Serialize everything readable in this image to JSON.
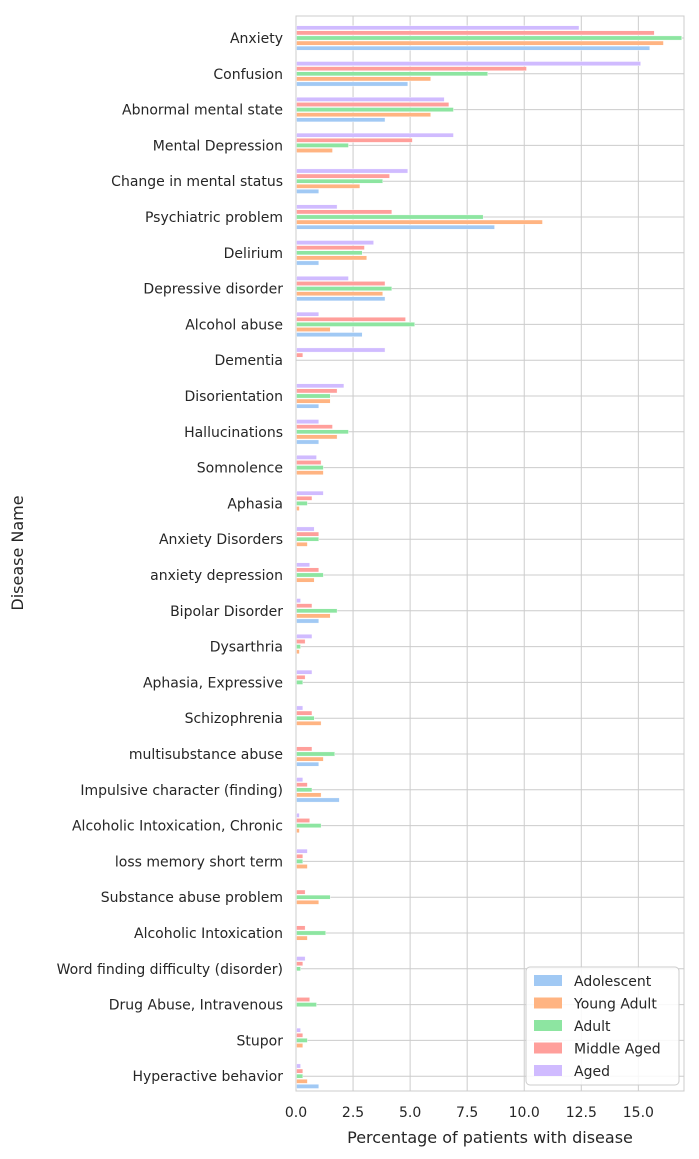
{
  "chart_data": {
    "type": "bar",
    "orientation": "horizontal",
    "title": "",
    "xlabel": "Percentage of patients with disease",
    "ylabel": "Disease Name",
    "xlim": [
      0,
      17
    ],
    "xticks": [
      "0.0",
      "2.5",
      "5.0",
      "7.5",
      "10.0",
      "12.5",
      "15.0"
    ],
    "xtick_values": [
      0,
      2.5,
      5,
      7.5,
      10,
      12.5,
      15
    ],
    "grid": true,
    "legend_position": "bottom-right",
    "categories": [
      "Anxiety",
      "Confusion",
      "Abnormal mental state",
      "Mental Depression",
      "Change in mental status",
      "Psychiatric problem",
      "Delirium",
      "Depressive disorder",
      "Alcohol abuse",
      "Dementia",
      "Disorientation",
      "Hallucinations",
      "Somnolence",
      "Aphasia",
      "Anxiety Disorders",
      "anxiety depression",
      "Bipolar Disorder",
      "Dysarthria",
      "Aphasia, Expressive",
      "Schizophrenia",
      "multisubstance abuse",
      "Impulsive character (finding)",
      "Alcoholic Intoxication, Chronic",
      "loss memory short term",
      "Substance abuse problem",
      "Alcoholic Intoxication",
      "Word finding difficulty (disorder)",
      "Drug Abuse, Intravenous",
      "Stupor",
      "Hyperactive behavior"
    ],
    "series": [
      {
        "name": "Adolescent",
        "color": "#a1c9f4",
        "values": [
          15.5,
          4.9,
          3.9,
          0,
          1.0,
          8.7,
          1.0,
          3.9,
          2.9,
          0,
          1.0,
          1.0,
          0,
          0,
          0,
          0,
          1.0,
          0,
          0,
          0,
          1.0,
          1.9,
          0,
          0,
          0,
          0,
          0,
          0,
          0,
          1.0
        ]
      },
      {
        "name": "Young Adult",
        "color": "#ffb482",
        "values": [
          16.1,
          5.9,
          5.9,
          1.6,
          2.8,
          10.8,
          3.1,
          3.8,
          1.5,
          0,
          1.5,
          1.8,
          1.2,
          0.15,
          0.5,
          0.8,
          1.5,
          0.15,
          0,
          1.1,
          1.2,
          1.1,
          0.15,
          0.5,
          1.0,
          0.5,
          0,
          0,
          0.3,
          0.5
        ]
      },
      {
        "name": "Adult",
        "color": "#8de5a1",
        "values": [
          16.9,
          8.4,
          6.9,
          2.3,
          3.8,
          8.2,
          2.9,
          4.2,
          5.2,
          0,
          1.5,
          2.3,
          1.2,
          0.5,
          1.0,
          1.2,
          1.8,
          0.2,
          0.3,
          0.8,
          1.7,
          0.7,
          1.1,
          0.3,
          1.5,
          1.3,
          0.2,
          0.9,
          0.5,
          0.3
        ]
      },
      {
        "name": "Middle Aged",
        "color": "#ff9f9b",
        "values": [
          15.7,
          10.1,
          6.7,
          5.1,
          4.1,
          4.2,
          3.0,
          3.9,
          4.8,
          0.3,
          1.8,
          1.6,
          1.1,
          0.7,
          1.0,
          1.0,
          0.7,
          0.4,
          0.4,
          0.7,
          0.7,
          0.5,
          0.6,
          0.3,
          0.4,
          0.4,
          0.3,
          0.6,
          0.3,
          0.3
        ]
      },
      {
        "name": "Aged",
        "color": "#d0bbff",
        "values": [
          12.4,
          15.1,
          6.5,
          6.9,
          4.9,
          1.8,
          3.4,
          2.3,
          1.0,
          3.9,
          2.1,
          1.0,
          0.9,
          1.2,
          0.8,
          0.6,
          0.2,
          0.7,
          0.7,
          0.3,
          0,
          0.3,
          0.15,
          0.5,
          0,
          0,
          0.4,
          0,
          0.2,
          0.2
        ]
      }
    ]
  }
}
